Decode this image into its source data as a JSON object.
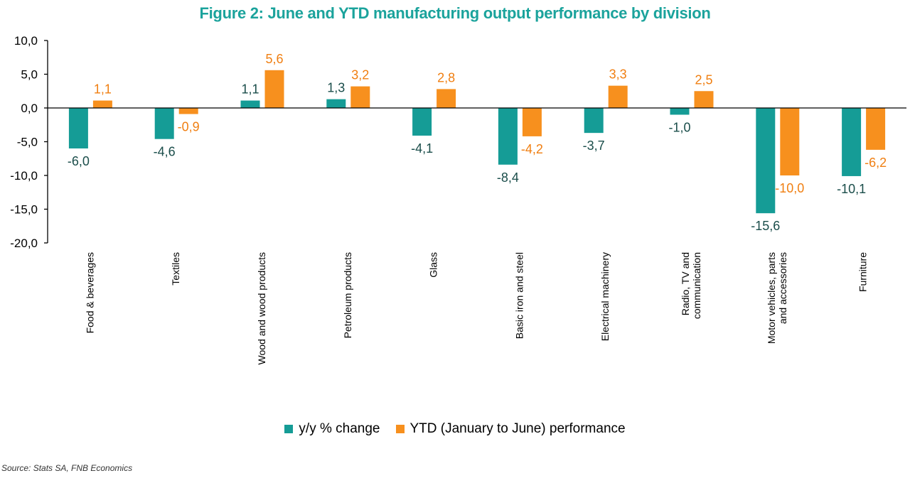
{
  "title": "Figure 2: June and YTD manufacturing output performance by division",
  "source": "Source: Stats SA, FNB Economics",
  "colors": {
    "title": "#1ba39c",
    "series_yy": "#159c96",
    "series_ytd": "#f7901e",
    "label_yy": "#1a4d4a",
    "label_ytd": "#f07f12",
    "axis": "#000000"
  },
  "chart_data": {
    "type": "bar",
    "title": "Figure 2: June and YTD manufacturing output performance by division",
    "categories": [
      "Food & beverages",
      "Textiles",
      "Wood and wood products",
      "Petroleum products",
      "Glass",
      "Basic iron and steel",
      "Electrical machinery",
      "Radio, TV and communication",
      "Motor vehicles, parts and accessories",
      "Furniture"
    ],
    "category_lines": [
      [
        "Food & beverages"
      ],
      [
        "Textiles"
      ],
      [
        "Wood and wood products"
      ],
      [
        "Petroleum products"
      ],
      [
        "Glass"
      ],
      [
        "Basic iron and steel"
      ],
      [
        "Electrical machinery"
      ],
      [
        "Radio, TV and",
        "communication"
      ],
      [
        "Motor vehicles, parts",
        "and accessories"
      ],
      [
        "Furniture"
      ]
    ],
    "series": [
      {
        "name": "y/y % change",
        "values": [
          -6.0,
          -4.6,
          1.1,
          1.3,
          -4.1,
          -8.4,
          -3.7,
          -1.0,
          -15.6,
          -10.1
        ]
      },
      {
        "name": "YTD (January to June) performance",
        "values": [
          1.1,
          -0.9,
          5.6,
          3.2,
          2.8,
          -4.2,
          3.3,
          2.5,
          -10.0,
          -6.2
        ]
      }
    ],
    "ylim": [
      -20,
      10
    ],
    "yticks": [
      "10,0",
      "5,0",
      "0,0",
      "-5,0",
      "-10,0",
      "-15,0",
      "-20,0"
    ],
    "legend_position": "bottom",
    "grid": false,
    "data_labels": true
  }
}
